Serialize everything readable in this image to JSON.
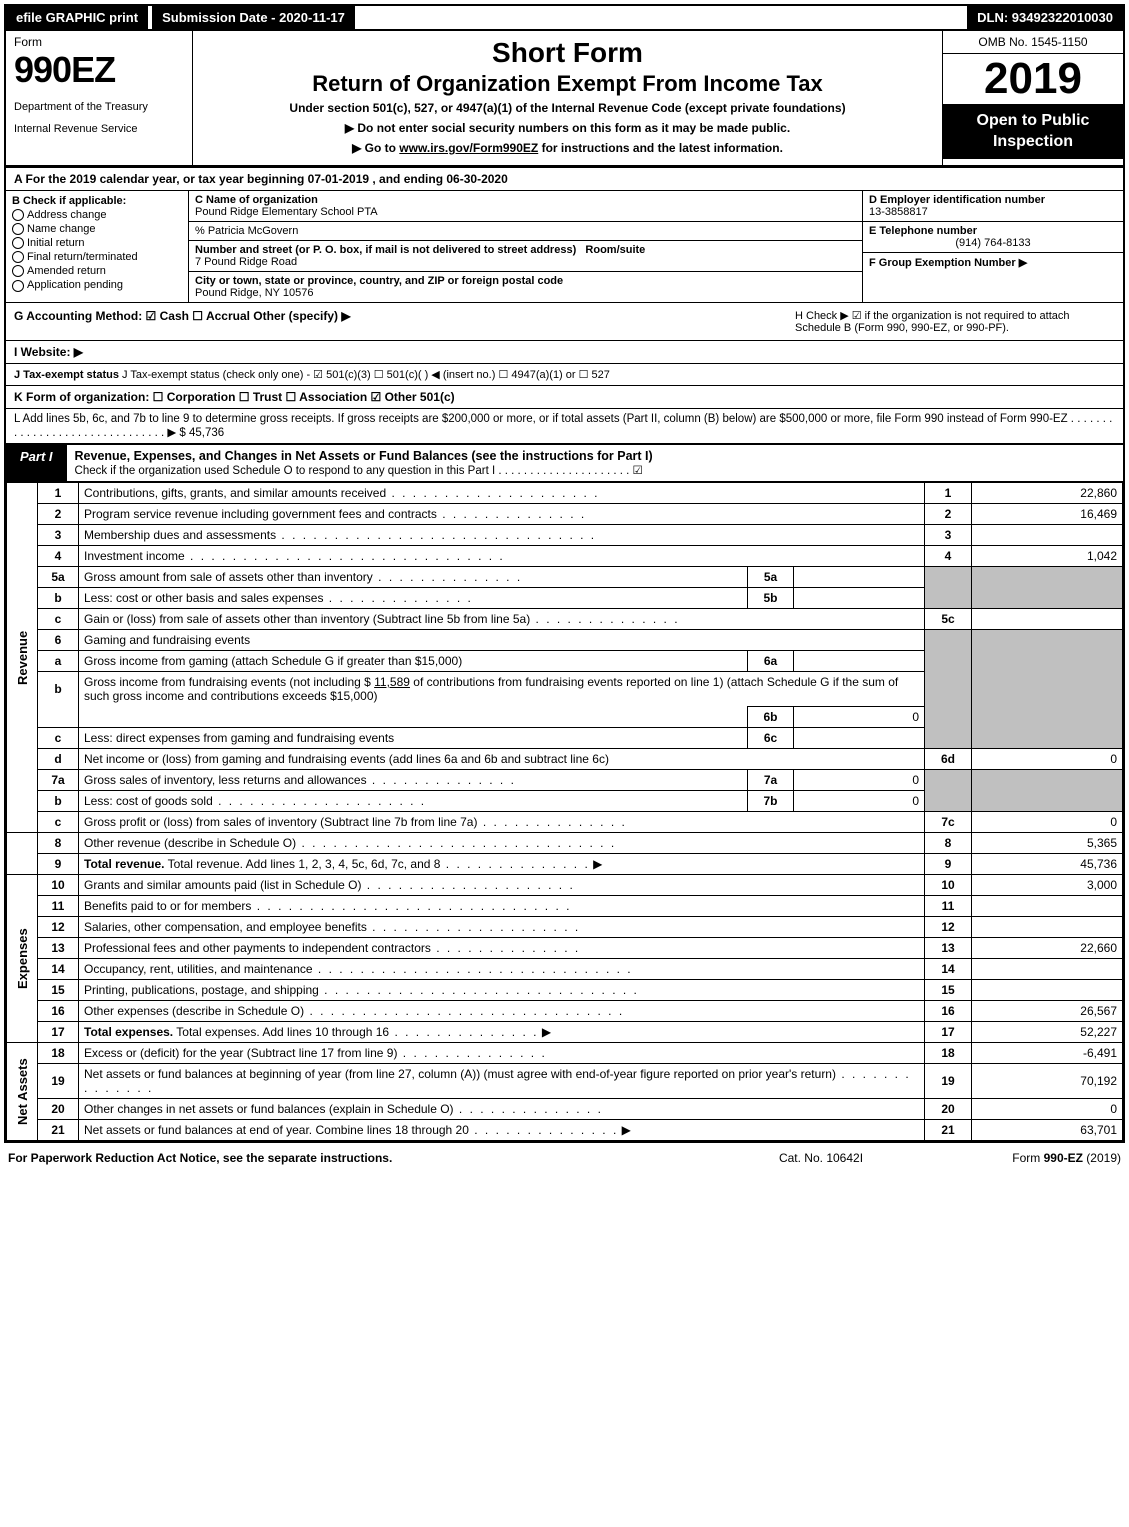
{
  "topbar": {
    "efile": "efile GRAPHIC print",
    "subdate_label": "Submission Date - 2020-11-17",
    "dln": "DLN: 93492322010030"
  },
  "header": {
    "form_word": "Form",
    "form_num": "990EZ",
    "dept1": "Department of the Treasury",
    "dept2": "Internal Revenue Service",
    "short_form": "Short Form",
    "main_title": "Return of Organization Exempt From Income Tax",
    "under_section": "Under section 501(c), 527, or 4947(a)(1) of the Internal Revenue Code (except private foundations)",
    "line1": "▶ Do not enter social security numbers on this form as it may be made public.",
    "line2_pre": "▶ Go to ",
    "line2_link": "www.irs.gov/Form990EZ",
    "line2_post": " for instructions and the latest information.",
    "omb": "OMB No. 1545-1150",
    "year": "2019",
    "open": "Open to Public Inspection"
  },
  "line_a": "A  For the 2019 calendar year, or tax year beginning 07-01-2019 , and ending 06-30-2020",
  "col_b": {
    "hdr": "B  Check if applicable:",
    "items": [
      "Address change",
      "Name change",
      "Initial return",
      "Final return/terminated",
      "Amended return",
      "Application pending"
    ]
  },
  "col_c": {
    "name_lbl": "C Name of organization",
    "name_val": "Pound Ridge Elementary School PTA",
    "care_of": "% Patricia McGovern",
    "street_lbl": "Number and street (or P. O. box, if mail is not delivered to street address)",
    "room_lbl": "Room/suite",
    "street_val": "7 Pound Ridge Road",
    "city_lbl": "City or town, state or province, country, and ZIP or foreign postal code",
    "city_val": "Pound Ridge, NY  10576"
  },
  "col_def": {
    "d_lbl": "D Employer identification number",
    "d_val": "13-3858817",
    "e_lbl": "E Telephone number",
    "e_val": "(914) 764-8133",
    "f_lbl": "F Group Exemption Number  ▶"
  },
  "row_g": {
    "g": "G Accounting Method:   ☑ Cash  ☐ Accrual   Other (specify) ▶",
    "h": "H  Check ▶ ☑ if the organization is not required to attach Schedule B (Form 990, 990-EZ, or 990-PF)."
  },
  "row_i": "I Website: ▶",
  "row_j": "J Tax-exempt status (check only one) - ☑ 501(c)(3)  ☐ 501(c)(  ) ◀ (insert no.)  ☐ 4947(a)(1) or  ☐ 527",
  "row_k": "K Form of organization:   ☐ Corporation   ☐ Trust   ☐ Association   ☑ Other 501(c)",
  "row_l": {
    "text": "L Add lines 5b, 6c, and 7b to line 9 to determine gross receipts. If gross receipts are $200,000 or more, or if total assets (Part II, column (B) below) are $500,000 or more, file Form 990 instead of Form 990-EZ  . . . . . . . . . . . . . . . . . . . . . . . . . . . . . . . ▶ $",
    "val": "45,736"
  },
  "part1": {
    "label": "Part I",
    "title": "Revenue, Expenses, and Changes in Net Assets or Fund Balances (see the instructions for Part I)",
    "check_line": "Check if the organization used Schedule O to respond to any question in this Part I  . . . . . . . . . . . . . . . . . . . . . ☑"
  },
  "side_labels": {
    "revenue": "Revenue",
    "expenses": "Expenses",
    "netassets": "Net Assets"
  },
  "lines": {
    "1": {
      "no": "1",
      "desc": "Contributions, gifts, grants, and similar amounts received",
      "num": "1",
      "val": "22,860"
    },
    "2": {
      "no": "2",
      "desc": "Program service revenue including government fees and contracts",
      "num": "2",
      "val": "16,469"
    },
    "3": {
      "no": "3",
      "desc": "Membership dues and assessments",
      "num": "3",
      "val": ""
    },
    "4": {
      "no": "4",
      "desc": "Investment income",
      "num": "4",
      "val": "1,042"
    },
    "5a": {
      "no": "5a",
      "desc": "Gross amount from sale of assets other than inventory",
      "sub": "5a",
      "subval": ""
    },
    "5b": {
      "no": "b",
      "desc": "Less: cost or other basis and sales expenses",
      "sub": "5b",
      "subval": ""
    },
    "5c": {
      "no": "c",
      "desc": "Gain or (loss) from sale of assets other than inventory (Subtract line 5b from line 5a)",
      "num": "5c",
      "val": ""
    },
    "6": {
      "no": "6",
      "desc": "Gaming and fundraising events"
    },
    "6a": {
      "no": "a",
      "desc": "Gross income from gaming (attach Schedule G if greater than $15,000)",
      "sub": "6a",
      "subval": ""
    },
    "6b": {
      "no": "b",
      "desc_pre": "Gross income from fundraising events (not including $ ",
      "amount": "11,589",
      "desc_post": " of contributions from fundraising events reported on line 1) (attach Schedule G if the sum of such gross income and contributions exceeds $15,000)",
      "sub": "6b",
      "subval": "0"
    },
    "6c": {
      "no": "c",
      "desc": "Less: direct expenses from gaming and fundraising events",
      "sub": "6c",
      "subval": ""
    },
    "6d": {
      "no": "d",
      "desc": "Net income or (loss) from gaming and fundraising events (add lines 6a and 6b and subtract line 6c)",
      "num": "6d",
      "val": "0"
    },
    "7a": {
      "no": "7a",
      "desc": "Gross sales of inventory, less returns and allowances",
      "sub": "7a",
      "subval": "0"
    },
    "7b": {
      "no": "b",
      "desc": "Less: cost of goods sold",
      "sub": "7b",
      "subval": "0"
    },
    "7c": {
      "no": "c",
      "desc": "Gross profit or (loss) from sales of inventory (Subtract line 7b from line 7a)",
      "num": "7c",
      "val": "0"
    },
    "8": {
      "no": "8",
      "desc": "Other revenue (describe in Schedule O)",
      "num": "8",
      "val": "5,365"
    },
    "9": {
      "no": "9",
      "desc": "Total revenue. Add lines 1, 2, 3, 4, 5c, 6d, 7c, and 8",
      "num": "9",
      "val": "45,736",
      "arrow": "▶"
    },
    "10": {
      "no": "10",
      "desc": "Grants and similar amounts paid (list in Schedule O)",
      "num": "10",
      "val": "3,000"
    },
    "11": {
      "no": "11",
      "desc": "Benefits paid to or for members",
      "num": "11",
      "val": ""
    },
    "12": {
      "no": "12",
      "desc": "Salaries, other compensation, and employee benefits",
      "num": "12",
      "val": ""
    },
    "13": {
      "no": "13",
      "desc": "Professional fees and other payments to independent contractors",
      "num": "13",
      "val": "22,660"
    },
    "14": {
      "no": "14",
      "desc": "Occupancy, rent, utilities, and maintenance",
      "num": "14",
      "val": ""
    },
    "15": {
      "no": "15",
      "desc": "Printing, publications, postage, and shipping",
      "num": "15",
      "val": ""
    },
    "16": {
      "no": "16",
      "desc": "Other expenses (describe in Schedule O)",
      "num": "16",
      "val": "26,567"
    },
    "17": {
      "no": "17",
      "desc": "Total expenses. Add lines 10 through 16",
      "num": "17",
      "val": "52,227",
      "arrow": "▶"
    },
    "18": {
      "no": "18",
      "desc": "Excess or (deficit) for the year (Subtract line 17 from line 9)",
      "num": "18",
      "val": "-6,491"
    },
    "19": {
      "no": "19",
      "desc": "Net assets or fund balances at beginning of year (from line 27, column (A)) (must agree with end-of-year figure reported on prior year's return)",
      "num": "19",
      "val": "70,192"
    },
    "20": {
      "no": "20",
      "desc": "Other changes in net assets or fund balances (explain in Schedule O)",
      "num": "20",
      "val": "0"
    },
    "21": {
      "no": "21",
      "desc": "Net assets or fund balances at end of year. Combine lines 18 through 20",
      "num": "21",
      "val": "63,701",
      "arrow": "▶"
    }
  },
  "footer": {
    "left": "For Paperwork Reduction Act Notice, see the separate instructions.",
    "mid": "Cat. No. 10642I",
    "right": "Form 990-EZ (2019)"
  }
}
